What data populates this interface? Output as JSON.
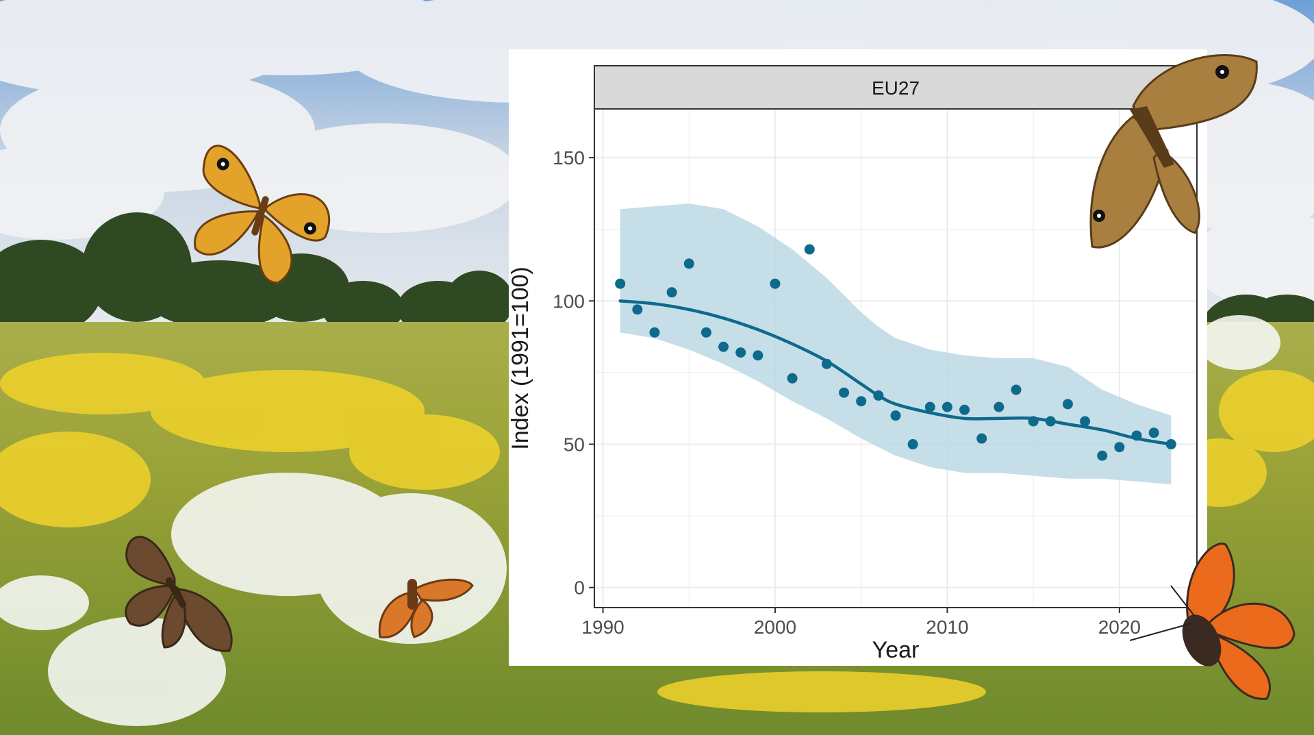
{
  "chart_data": {
    "type": "scatter",
    "facet": "EU27",
    "xlabel": "Year",
    "ylabel": "Index (1991=100)",
    "xticks": [
      1990,
      2000,
      2010,
      2020
    ],
    "yticks": [
      0,
      50,
      100,
      150
    ],
    "xlim": [
      1989.5,
      2024.5
    ],
    "ylim": [
      -7,
      167
    ],
    "grid": true,
    "points": {
      "x": [
        1991,
        1992,
        1993,
        1994,
        1995,
        1996,
        1997,
        1998,
        1999,
        2000,
        2001,
        2002,
        2003,
        2004,
        2005,
        2006,
        2007,
        2008,
        2009,
        2010,
        2011,
        2012,
        2013,
        2014,
        2015,
        2016,
        2017,
        2018,
        2019,
        2020,
        2021,
        2022,
        2023
      ],
      "y": [
        106,
        97,
        89,
        103,
        113,
        89,
        84,
        82,
        81,
        106,
        73,
        118,
        78,
        68,
        65,
        67,
        60,
        50,
        63,
        63,
        62,
        52,
        63,
        69,
        58,
        58,
        64,
        58,
        46,
        49,
        53,
        54,
        50
      ]
    },
    "trend": {
      "x": [
        1991,
        1993,
        1995,
        1997,
        1999,
        2001,
        2003,
        2005,
        2006,
        2007,
        2009,
        2011,
        2013,
        2015,
        2017,
        2019,
        2021,
        2023
      ],
      "y": [
        100,
        99,
        97,
        94,
        90,
        85,
        79,
        71,
        67,
        64,
        61,
        59,
        59,
        59,
        57,
        55,
        52,
        50
      ]
    },
    "ci_upper": [
      132,
      133,
      134,
      132,
      126,
      118,
      108,
      96,
      91,
      87,
      83,
      81,
      80,
      80,
      77,
      69,
      64,
      60
    ],
    "ci_lower": [
      89,
      87,
      83,
      78,
      72,
      65,
      59,
      52,
      49,
      46,
      42,
      40,
      40,
      39,
      38,
      38,
      37,
      36
    ],
    "colors": {
      "point": "#0d6a8c",
      "line": "#0d6a8c",
      "band": "#bcd8e4",
      "strip": "#d9d9d9"
    }
  },
  "scene": {
    "butterflies": [
      {
        "name": "wall-brown",
        "color": "#e3a22a",
        "shade": "#6b3d12"
      },
      {
        "name": "meadow-brown",
        "color": "#a97f3f",
        "shade": "#5b3c1a"
      },
      {
        "name": "dingy-skipper",
        "color": "#6b4a30",
        "shade": "#3b2818"
      },
      {
        "name": "large-skipper",
        "color": "#d9782a",
        "shade": "#6b3a14"
      },
      {
        "name": "small-copper",
        "color": "#ec6a1c",
        "shade": "#3a2a22"
      }
    ]
  }
}
